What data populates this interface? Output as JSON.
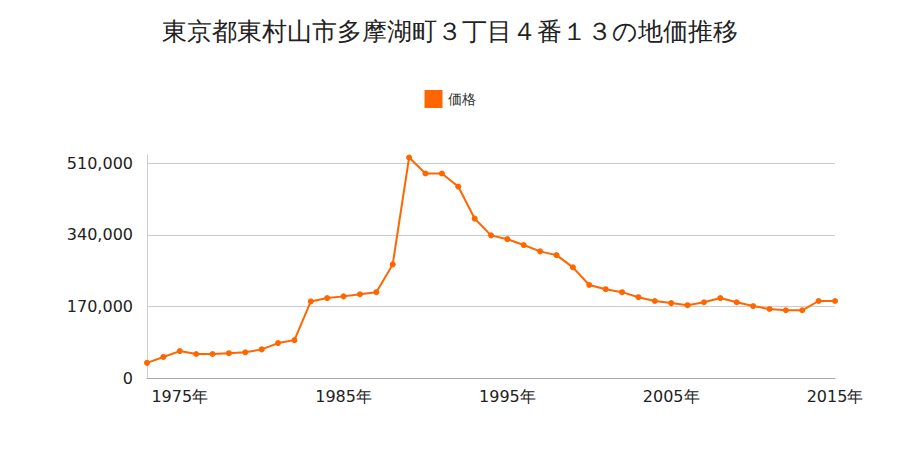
{
  "chart_data": {
    "type": "line",
    "title": "東京都東村山市多摩湖町３丁目４番１３の地価推移",
    "series": [
      {
        "name": "価格",
        "color": "#ff6600",
        "marker": "circle",
        "values": [
          36000,
          50000,
          64000,
          57000,
          57000,
          59000,
          61000,
          68000,
          83000,
          90000,
          182000,
          190000,
          194000,
          199000,
          204000,
          270000,
          524000,
          486000,
          486000,
          455000,
          379000,
          339000,
          330000,
          316000,
          301000,
          292000,
          263000,
          221000,
          211000,
          204000,
          192000,
          183000,
          178000,
          173000,
          180000,
          190000,
          180000,
          171000,
          164000,
          161000,
          161000,
          183000,
          183000
        ]
      }
    ],
    "x": [
      1973,
      1974,
      1975,
      1976,
      1977,
      1978,
      1979,
      1980,
      1981,
      1982,
      1983,
      1984,
      1985,
      1986,
      1987,
      1988,
      1989,
      1990,
      1991,
      1992,
      1993,
      1994,
      1995,
      1996,
      1997,
      1998,
      1999,
      2000,
      2001,
      2002,
      2003,
      2004,
      2005,
      2006,
      2007,
      2008,
      2009,
      2010,
      2011,
      2012,
      2013,
      2014,
      2015
    ],
    "xlim": [
      1973,
      2015
    ],
    "xticks": [
      {
        "value": 1975,
        "label": "1975年"
      },
      {
        "value": 1985,
        "label": "1985年"
      },
      {
        "value": 1995,
        "label": "1995年"
      },
      {
        "value": 2005,
        "label": "2005年"
      },
      {
        "value": 2015,
        "label": "2015年"
      }
    ],
    "ylim": [
      0,
      530000
    ],
    "yticks": [
      0,
      {
        "value": 170000,
        "label": "170,000"
      },
      {
        "value": 340000,
        "label": "340,000"
      },
      {
        "value": 510000,
        "label": "510,000"
      }
    ],
    "grid": true,
    "legend": "top"
  }
}
